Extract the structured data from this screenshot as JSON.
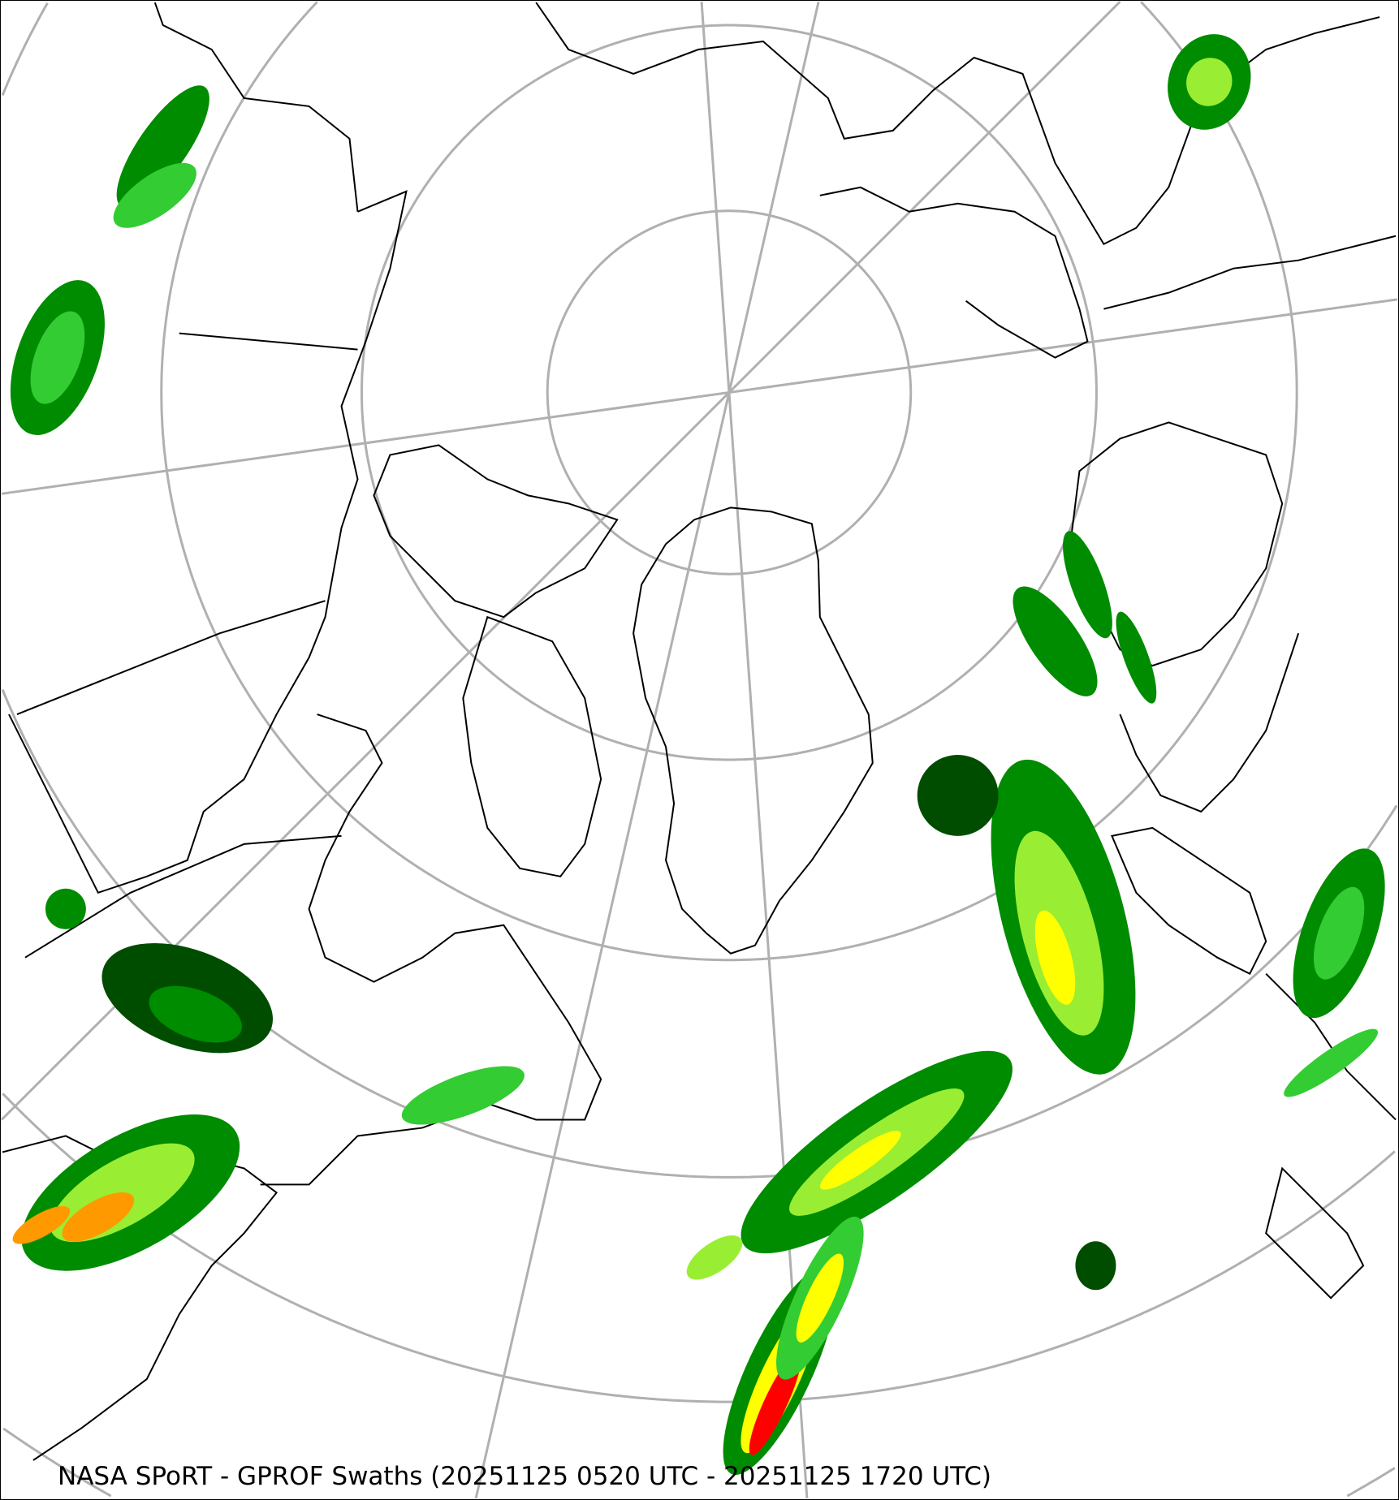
{
  "title": "NASA SPoRT - GPROF Swaths (20251125 0520 UTC - 20251125 1720 UTC)",
  "map": {
    "projection": "north-polar-stereographic",
    "graticule_color": "#b0b0b0",
    "coastline_color": "#000000",
    "precip_colors": [
      "#004d00",
      "#008c00",
      "#33cc33",
      "#99ee33",
      "#ffff00",
      "#ff9900",
      "#ff0000"
    ]
  }
}
